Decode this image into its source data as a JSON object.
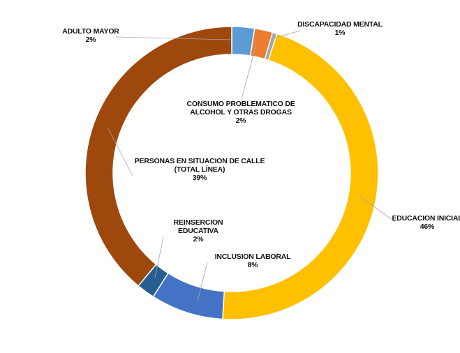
{
  "chart_data": {
    "type": "pie",
    "variant": "donut",
    "title": "",
    "legend": "none",
    "slices": [
      {
        "name": "ADULTO MAYOR",
        "value": 2.5,
        "percent_label": "2%",
        "color": "#5B9BD5"
      },
      {
        "name": "CONSUMO PROBLEMATICO DE ALCOHOL Y OTRAS DROGAS",
        "lines": [
          "CONSUMO PROBLEMATICO DE",
          "ALCOHOL Y OTRAS DROGAS"
        ],
        "value": 2.0,
        "percent_label": "2%",
        "color": "#ED7D31"
      },
      {
        "name": "DISCAPACIDAD MENTAL",
        "value": 0.5,
        "percent_label": "1%",
        "color": "#A5A5A5"
      },
      {
        "name": "EDUCACION INICIAL",
        "value": 46.0,
        "percent_label": "46%",
        "color": "#FFC000"
      },
      {
        "name": "INCLUSION LABORAL",
        "value": 8.0,
        "percent_label": "8%",
        "color": "#4472C4"
      },
      {
        "name": "REINSERCION EDUCATIVA",
        "lines": [
          "REINSERCION",
          "EDUCATIVA"
        ],
        "value": 2.0,
        "percent_label": "2%",
        "color": "#255E91"
      },
      {
        "name": "PERSONAS EN SITUACION DE CALLE (TOTAL LÍNEA)",
        "lines": [
          "PERSONAS EN SITUACION DE CALLE",
          "(TOTAL LÍNEA)"
        ],
        "value": 39.0,
        "percent_label": "39%",
        "color": "#9E480E"
      }
    ]
  }
}
